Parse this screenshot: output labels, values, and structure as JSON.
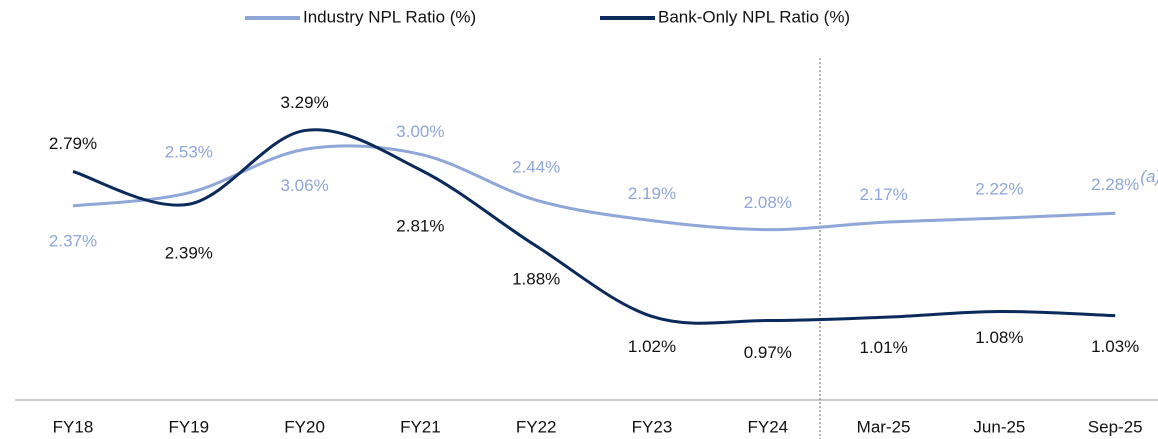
{
  "chart_data": {
    "type": "line",
    "categories": [
      "FY18",
      "FY19",
      "FY20",
      "FY21",
      "FY22",
      "FY23",
      "FY24",
      "Mar-25",
      "Jun-25",
      "Sep-25"
    ],
    "series": [
      {
        "name": "Industry NPL Ratio (%)",
        "color": "#8ea6d8",
        "values": [
          2.37,
          2.53,
          3.06,
          3.0,
          2.44,
          2.19,
          2.08,
          2.17,
          2.22,
          2.28
        ],
        "value_labels": [
          "2.37%",
          "2.53%",
          "3.06%",
          "3.00%",
          "2.44%",
          "2.19%",
          "2.08%",
          "2.17%",
          "2.22%",
          "2.28%"
        ]
      },
      {
        "name": "Bank-Only NPL Ratio (%)",
        "color": "#0b2a5c",
        "values": [
          2.79,
          2.39,
          3.29,
          2.81,
          1.88,
          1.02,
          0.97,
          1.01,
          1.08,
          1.03
        ],
        "value_labels": [
          "2.79%",
          "2.39%",
          "3.29%",
          "2.81%",
          "1.88%",
          "1.02%",
          "0.97%",
          "1.01%",
          "1.08%",
          "1.03%"
        ]
      }
    ],
    "annotation": "(a)",
    "ylim": [
      0,
      4
    ],
    "legend": "top"
  }
}
